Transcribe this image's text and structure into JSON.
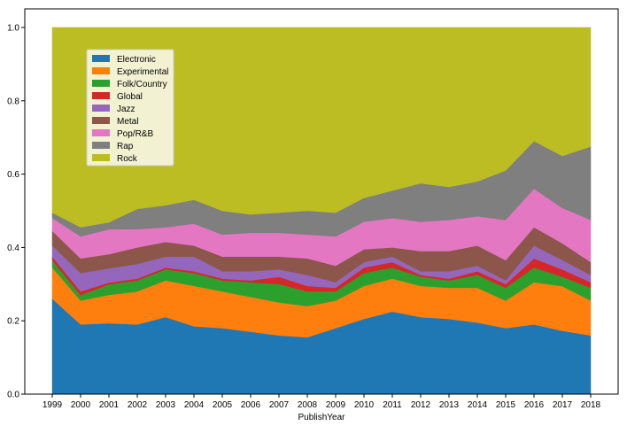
{
  "chart_data": {
    "type": "area",
    "stacked": true,
    "normalized": true,
    "title": "",
    "xlabel": "PublishYear",
    "ylabel": "",
    "ylim": [
      0,
      1.0
    ],
    "yticks": [
      "0.0",
      "0.2",
      "0.4",
      "0.6",
      "0.8",
      "1.0"
    ],
    "grid": false,
    "legend_position": "upper-left",
    "x": [
      1999,
      2000,
      2001,
      2002,
      2003,
      2004,
      2005,
      2006,
      2007,
      2008,
      2009,
      2010,
      2011,
      2012,
      2013,
      2014,
      2015,
      2016,
      2017,
      2018
    ],
    "x_tick_labels": [
      "1999",
      "2000",
      "2001",
      "2002",
      "2003",
      "2004",
      "2005",
      "2006",
      "2007",
      "2008",
      "2009",
      "2010",
      "2011",
      "2012",
      "2013",
      "2014",
      "2015",
      "2016",
      "2017",
      "2018"
    ],
    "series": [
      {
        "name": "Electronic",
        "color": "#1f77b4",
        "values": [
          0.26,
          0.19,
          0.2,
          0.19,
          0.21,
          0.185,
          0.18,
          0.17,
          0.16,
          0.155,
          0.18,
          0.205,
          0.225,
          0.21,
          0.205,
          0.195,
          0.18,
          0.19,
          0.17,
          0.16
        ]
      },
      {
        "name": "Experimental",
        "color": "#ff7f0e",
        "values": [
          0.085,
          0.065,
          0.08,
          0.09,
          0.1,
          0.11,
          0.1,
          0.095,
          0.09,
          0.085,
          0.075,
          0.09,
          0.09,
          0.085,
          0.085,
          0.095,
          0.075,
          0.115,
          0.12,
          0.095
        ]
      },
      {
        "name": "Folk/Country",
        "color": "#2ca02c",
        "values": [
          0.02,
          0.015,
          0.03,
          0.03,
          0.03,
          0.035,
          0.03,
          0.04,
          0.05,
          0.04,
          0.025,
          0.035,
          0.03,
          0.025,
          0.02,
          0.035,
          0.035,
          0.04,
          0.025,
          0.035
        ]
      },
      {
        "name": "Global",
        "color": "#d62728",
        "values": [
          0.01,
          0.01,
          0.005,
          0.005,
          0.005,
          0.005,
          0.005,
          0.005,
          0.02,
          0.015,
          0.01,
          0.015,
          0.015,
          0.005,
          0.005,
          0.01,
          0.01,
          0.025,
          0.02,
          0.015
        ]
      },
      {
        "name": "Jazz",
        "color": "#9467bd",
        "values": [
          0.03,
          0.05,
          0.04,
          0.04,
          0.03,
          0.04,
          0.02,
          0.025,
          0.02,
          0.03,
          0.015,
          0.015,
          0.015,
          0.01,
          0.02,
          0.015,
          0.01,
          0.035,
          0.025,
          0.02
        ]
      },
      {
        "name": "Metal",
        "color": "#8c564b",
        "values": [
          0.04,
          0.04,
          0.04,
          0.045,
          0.04,
          0.03,
          0.04,
          0.04,
          0.035,
          0.045,
          0.045,
          0.035,
          0.025,
          0.055,
          0.055,
          0.055,
          0.055,
          0.05,
          0.045,
          0.035
        ]
      },
      {
        "name": "Pop/R&B",
        "color": "#e377c2",
        "values": [
          0.035,
          0.06,
          0.07,
          0.05,
          0.04,
          0.06,
          0.06,
          0.065,
          0.065,
          0.065,
          0.08,
          0.075,
          0.08,
          0.08,
          0.085,
          0.08,
          0.11,
          0.105,
          0.095,
          0.115
        ]
      },
      {
        "name": "Rap",
        "color": "#7f7f7f",
        "values": [
          0.015,
          0.025,
          0.02,
          0.055,
          0.06,
          0.065,
          0.065,
          0.05,
          0.055,
          0.065,
          0.065,
          0.065,
          0.075,
          0.105,
          0.09,
          0.095,
          0.135,
          0.13,
          0.14,
          0.2
        ]
      },
      {
        "name": "Rock",
        "color": "#bcbd22",
        "values": [
          0.505,
          0.545,
          0.55,
          0.495,
          0.485,
          0.47,
          0.5,
          0.51,
          0.505,
          0.5,
          0.505,
          0.465,
          0.445,
          0.425,
          0.435,
          0.42,
          0.39,
          0.31,
          0.345,
          0.325
        ]
      }
    ]
  }
}
